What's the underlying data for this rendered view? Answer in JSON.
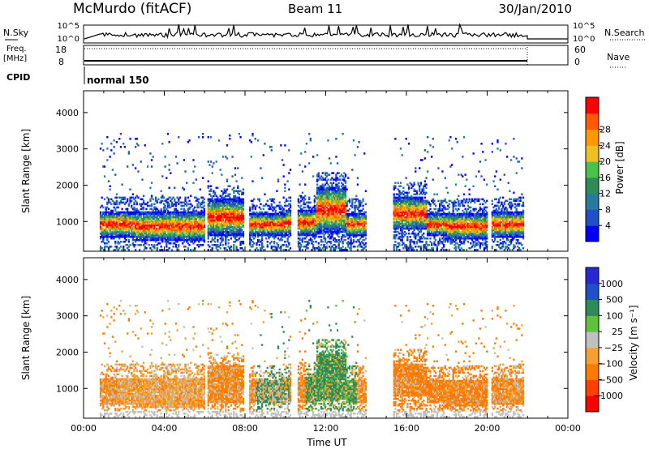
{
  "header": {
    "title": "McMurdo (fitACF)",
    "beam": "Beam 11",
    "date": "30/Jan/2010"
  },
  "top_panels": {
    "nsky_label": "N.Sky",
    "nsky_ticks": [
      "10^5",
      "10^0"
    ],
    "nsearch_label": "N.Search",
    "nsearch_ticks": [
      "10^5",
      "10^0"
    ],
    "freq_label": "Freq.",
    "freq_unit": "[MHz]",
    "freq_ticks": [
      "18",
      "8"
    ],
    "nave_label": "Nave",
    "nave_ticks": [
      "60",
      "0"
    ],
    "cpid_label": "CPID",
    "cpid_value": "normal 150"
  },
  "colors": {
    "power": [
      "#0000ff",
      "#1e50c8",
      "#2878a0",
      "#2e8b57",
      "#4cc04c",
      "#f0c020",
      "#ff9900",
      "#ff5a00",
      "#ff0000"
    ],
    "velocity": [
      "#ff0000",
      "#ff4000",
      "#ff7a00",
      "#f5a030",
      "#c0c0c0",
      "#60c040",
      "#2e8b57",
      "#1e50c8",
      "#2828d0"
    ],
    "ground_scatter": "#b4b4b4"
  },
  "chart_data": [
    {
      "type": "heatmap",
      "panel": "power",
      "ylabel": "Slant Range [km]",
      "yticks": [
        "1000",
        "2000",
        "3000",
        "4000"
      ],
      "ylim": [
        180,
        4600
      ],
      "xlim_hours": [
        0,
        24
      ],
      "colorbar_label": "Power [dB]",
      "colorbar_ticks": [
        "4",
        "8",
        "12",
        "16",
        "20",
        "24",
        "28"
      ],
      "colorbar_range": [
        0,
        32
      ],
      "gaps_ut": [
        [
          "00:00",
          "00:50"
        ],
        [
          "06:00",
          "06:08"
        ],
        [
          "07:55",
          "08:10"
        ],
        [
          "10:15",
          "10:35"
        ],
        [
          "14:00",
          "15:20"
        ],
        [
          "20:00",
          "20:10"
        ],
        [
          "21:50",
          "24:00"
        ]
      ]
    },
    {
      "type": "heatmap",
      "panel": "velocity",
      "ylabel": "Slant Range [km]",
      "yticks": [
        "1000",
        "2000",
        "3000",
        "4000"
      ],
      "ylim": [
        180,
        4600
      ],
      "xlim_hours": [
        0,
        24
      ],
      "xlabel": "Time UT",
      "xticks": [
        "00:00",
        "04:00",
        "08:00",
        "12:00",
        "16:00",
        "20:00",
        "00:00"
      ],
      "colorbar_label": "Velocity [m s⁻¹]",
      "colorbar_ticks": [
        "1000",
        "500",
        "100",
        "25",
        "−25",
        "−100",
        "−500",
        "−1000"
      ]
    }
  ]
}
